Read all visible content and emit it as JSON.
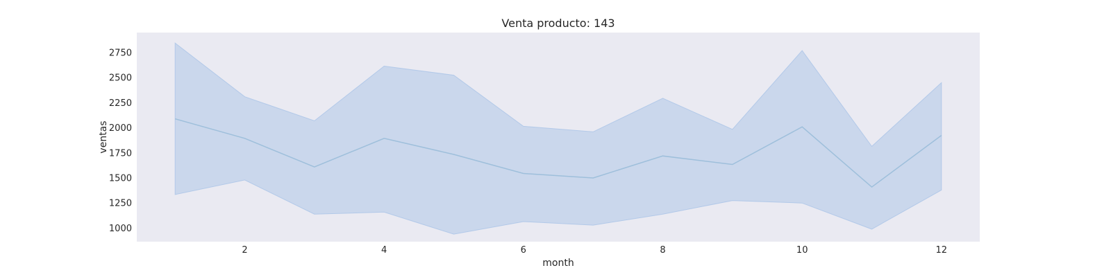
{
  "chart_data": {
    "type": "area",
    "title": "Venta producto: 143",
    "xlabel": "month",
    "ylabel": "ventas",
    "x": [
      1,
      2,
      3,
      4,
      5,
      6,
      7,
      8,
      9,
      10,
      11,
      12
    ],
    "series": [
      {
        "role": "mean",
        "values": [
          2090,
          1895,
          1610,
          1895,
          1735,
          1545,
          1500,
          1720,
          1635,
          2010,
          1410,
          1925
        ]
      }
    ],
    "band": {
      "upper": [
        2845,
        2310,
        2070,
        2615,
        2525,
        2015,
        1960,
        2295,
        1985,
        2770,
        1815,
        2450
      ],
      "lower": [
        1335,
        1480,
        1140,
        1160,
        940,
        1065,
        1030,
        1140,
        1275,
        1250,
        990,
        1380
      ]
    },
    "xticks": [
      2,
      4,
      6,
      8,
      10,
      12
    ],
    "yticks": [
      1000,
      1250,
      1500,
      1750,
      2000,
      2250,
      2500,
      2750
    ],
    "xlim": [
      0.45,
      12.55
    ],
    "ylim": [
      865,
      2950
    ],
    "grid": false,
    "colors": {
      "plot_background": "#eaeaf2",
      "band_fill": "#aec7e8",
      "line": "#9ebfdb"
    }
  }
}
